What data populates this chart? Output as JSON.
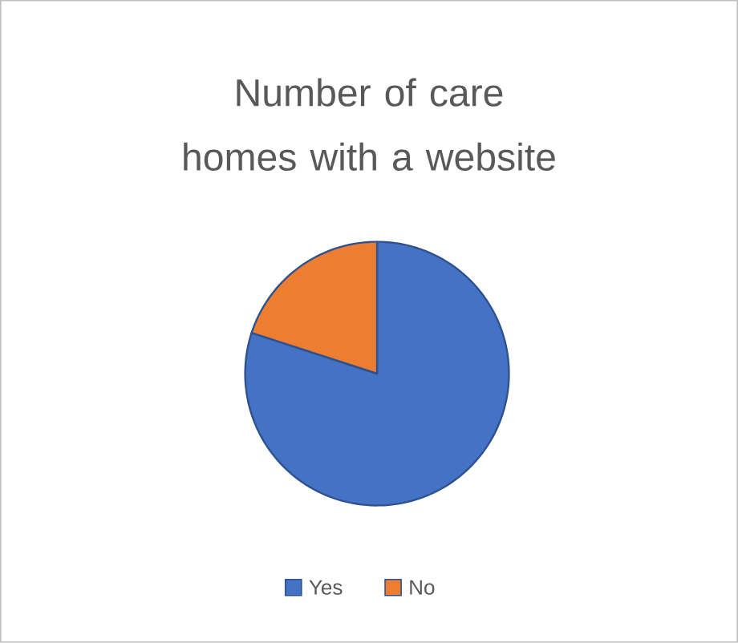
{
  "chart_data": {
    "type": "pie",
    "title": "Number of care homes with a website",
    "categories": [
      "Yes",
      "No"
    ],
    "values": [
      80,
      20
    ],
    "colors": [
      "#4472c4",
      "#ed7d31"
    ],
    "legend": "bottom"
  }
}
